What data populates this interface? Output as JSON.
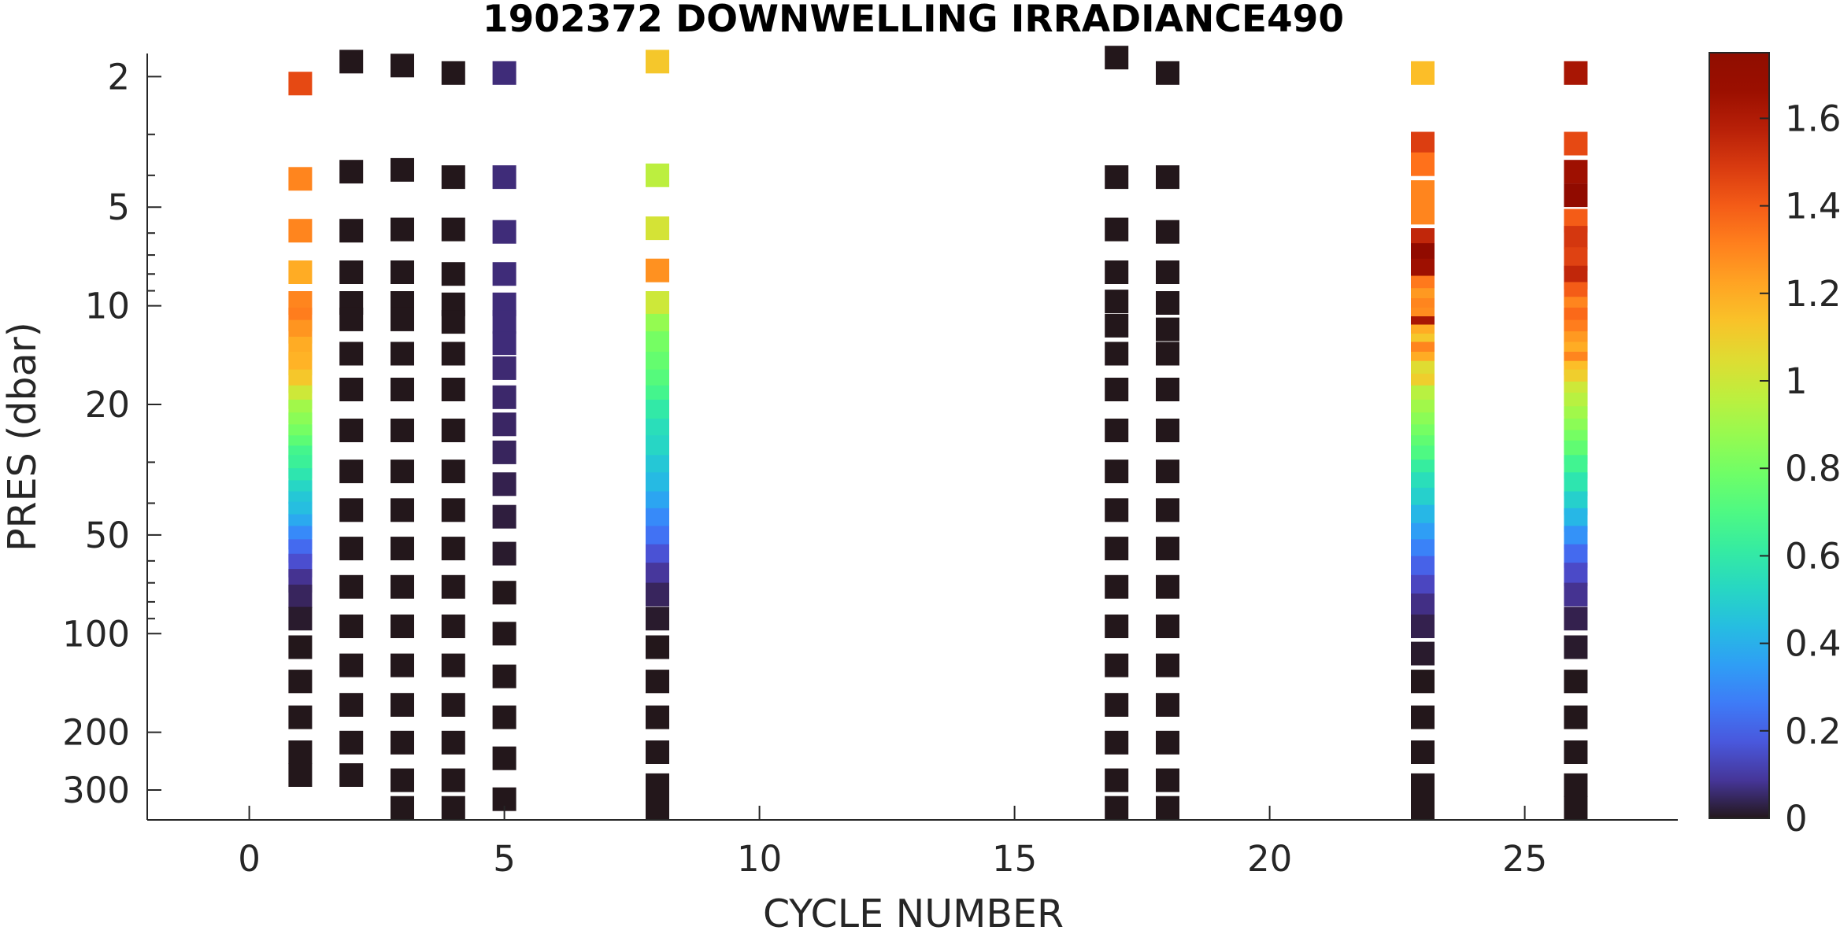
{
  "chart_data": {
    "type": "scatter",
    "title": "1902372  DOWNWELLING IRRADIANCE490",
    "xlabel": "CYCLE NUMBER",
    "ylabel": "PRES (dbar)",
    "xlim": [
      -2,
      28
    ],
    "ylim": [
      1.7,
      370
    ],
    "y_scale": "log",
    "y_reversed": true,
    "x_ticks": [
      0,
      5,
      10,
      15,
      20,
      25
    ],
    "x_tick_labels": [
      "0",
      "5",
      "10",
      "15",
      "20",
      "25"
    ],
    "y_ticks": [
      2,
      5,
      10,
      20,
      50,
      100,
      200,
      300
    ],
    "y_tick_labels": [
      "2",
      "5",
      "10",
      "20",
      "50",
      "100",
      "200",
      "300"
    ],
    "colorbar": {
      "colormap": "turbo",
      "clim": [
        0,
        1.75
      ],
      "ticks": [
        0,
        0.2,
        0.4,
        0.6,
        0.8,
        1,
        1.2,
        1.4,
        1.6
      ],
      "tick_labels": [
        "0",
        "0.2",
        "0.4",
        "0.6",
        "0.8",
        "1",
        "1.2",
        "1.4",
        "1.6"
      ]
    },
    "grid": false,
    "profiles": [
      {
        "cycle": 1,
        "points": [
          [
            2.1,
            1.45
          ],
          [
            4.1,
            1.3
          ],
          [
            5.9,
            1.3
          ],
          [
            7.9,
            1.2
          ],
          [
            9.8,
            1.3
          ],
          [
            11,
            1.32
          ],
          [
            12,
            1.26
          ],
          [
            13.5,
            1.2
          ],
          [
            15,
            1.18
          ],
          [
            17,
            1.12
          ],
          [
            19,
            1.0
          ],
          [
            21,
            0.9
          ],
          [
            23,
            0.85
          ],
          [
            25,
            0.8
          ],
          [
            27,
            0.74
          ],
          [
            29,
            0.67
          ],
          [
            31,
            0.64
          ],
          [
            34,
            0.58
          ],
          [
            37,
            0.52
          ],
          [
            40,
            0.47
          ],
          [
            43,
            0.44
          ],
          [
            47,
            0.38
          ],
          [
            51,
            0.3
          ],
          [
            56,
            0.22
          ],
          [
            62,
            0.15
          ],
          [
            69,
            0.08
          ],
          [
            77,
            0.04
          ],
          [
            90,
            0.01
          ],
          [
            110,
            0.0
          ],
          [
            140,
            0.0
          ],
          [
            180,
            0.0
          ],
          [
            230,
            0.0
          ],
          [
            270,
            0.0
          ]
        ]
      },
      {
        "cycle": 2,
        "points": [
          [
            1.8,
            0.0
          ],
          [
            3.9,
            0.0
          ],
          [
            5.9,
            0.0
          ],
          [
            7.9,
            0.0
          ],
          [
            9.8,
            0.0
          ],
          [
            11,
            0.0
          ],
          [
            14,
            0.0
          ],
          [
            18,
            0.0
          ],
          [
            24,
            0.0
          ],
          [
            32,
            0.0
          ],
          [
            42,
            0.0
          ],
          [
            55,
            0.0
          ],
          [
            72,
            0.0
          ],
          [
            95,
            0.0
          ],
          [
            125,
            0.0
          ],
          [
            165,
            0.0
          ],
          [
            215,
            0.0
          ],
          [
            270,
            0.0
          ]
        ]
      },
      {
        "cycle": 3,
        "points": [
          [
            1.85,
            0.0
          ],
          [
            3.85,
            0.0
          ],
          [
            5.85,
            0.0
          ],
          [
            7.9,
            0.0
          ],
          [
            9.8,
            0.0
          ],
          [
            11,
            0.0
          ],
          [
            14,
            0.0
          ],
          [
            18,
            0.0
          ],
          [
            24,
            0.0
          ],
          [
            32,
            0.0
          ],
          [
            42,
            0.0
          ],
          [
            55,
            0.0
          ],
          [
            72,
            0.0
          ],
          [
            95,
            0.0
          ],
          [
            125,
            0.0
          ],
          [
            165,
            0.0
          ],
          [
            215,
            0.0
          ],
          [
            280,
            0.0
          ],
          [
            340,
            0.0
          ]
        ]
      },
      {
        "cycle": 4,
        "points": [
          [
            1.95,
            0.0
          ],
          [
            4.05,
            0.0
          ],
          [
            5.85,
            0.0
          ],
          [
            8.0,
            0.0
          ],
          [
            9.9,
            0.0
          ],
          [
            11.2,
            0.0
          ],
          [
            14,
            0.0
          ],
          [
            18,
            0.0
          ],
          [
            24,
            0.0
          ],
          [
            32,
            0.0
          ],
          [
            42,
            0.0
          ],
          [
            55,
            0.0
          ],
          [
            72,
            0.0
          ],
          [
            95,
            0.0
          ],
          [
            125,
            0.0
          ],
          [
            165,
            0.0
          ],
          [
            215,
            0.0
          ],
          [
            280,
            0.0
          ],
          [
            340,
            0.0
          ]
        ]
      },
      {
        "cycle": 5,
        "points": [
          [
            1.95,
            0.06
          ],
          [
            4.05,
            0.06
          ],
          [
            5.95,
            0.06
          ],
          [
            8.0,
            0.06
          ],
          [
            9.9,
            0.06
          ],
          [
            11.2,
            0.06
          ],
          [
            13,
            0.06
          ],
          [
            15.5,
            0.055
          ],
          [
            19,
            0.05
          ],
          [
            23,
            0.045
          ],
          [
            28,
            0.04
          ],
          [
            35,
            0.03
          ],
          [
            44,
            0.02
          ],
          [
            57,
            0.01
          ],
          [
            75,
            0.0
          ],
          [
            100,
            0.0
          ],
          [
            135,
            0.0
          ],
          [
            180,
            0.0
          ],
          [
            240,
            0.0
          ],
          [
            320,
            0.0
          ]
        ]
      },
      {
        "cycle": 8,
        "points": [
          [
            1.8,
            1.12
          ],
          [
            4.0,
            0.96
          ],
          [
            5.8,
            1.02
          ],
          [
            7.8,
            1.27
          ],
          [
            9.8,
            1.0
          ],
          [
            11.5,
            0.87
          ],
          [
            13,
            0.8
          ],
          [
            15,
            0.76
          ],
          [
            17,
            0.72
          ],
          [
            19,
            0.67
          ],
          [
            21,
            0.6
          ],
          [
            24,
            0.55
          ],
          [
            27,
            0.52
          ],
          [
            31,
            0.47
          ],
          [
            35,
            0.43
          ],
          [
            40,
            0.37
          ],
          [
            45,
            0.3
          ],
          [
            51,
            0.24
          ],
          [
            58,
            0.16
          ],
          [
            66,
            0.09
          ],
          [
            76,
            0.04
          ],
          [
            90,
            0.01
          ],
          [
            110,
            0.0
          ],
          [
            140,
            0.0
          ],
          [
            180,
            0.0
          ],
          [
            230,
            0.0
          ],
          [
            290,
            0.0
          ],
          [
            340,
            0.0
          ]
        ]
      },
      {
        "cycle": 17,
        "points": [
          [
            1.75,
            0.0
          ],
          [
            4.05,
            0.0
          ],
          [
            5.85,
            0.0
          ],
          [
            7.9,
            0.0
          ],
          [
            9.7,
            0.0
          ],
          [
            11.5,
            0.0
          ],
          [
            14,
            0.0
          ],
          [
            18,
            0.0
          ],
          [
            24,
            0.0
          ],
          [
            32,
            0.0
          ],
          [
            42,
            0.0
          ],
          [
            55,
            0.0
          ],
          [
            72,
            0.0
          ],
          [
            95,
            0.0
          ],
          [
            125,
            0.0
          ],
          [
            165,
            0.0
          ],
          [
            215,
            0.0
          ],
          [
            280,
            0.0
          ],
          [
            340,
            0.0
          ]
        ]
      },
      {
        "cycle": 18,
        "points": [
          [
            1.95,
            0.0
          ],
          [
            4.05,
            0.0
          ],
          [
            5.95,
            0.0
          ],
          [
            7.9,
            0.0
          ],
          [
            9.8,
            0.0
          ],
          [
            11.8,
            0.0
          ],
          [
            14,
            0.0
          ],
          [
            18,
            0.0
          ],
          [
            24,
            0.0
          ],
          [
            32,
            0.0
          ],
          [
            42,
            0.0
          ],
          [
            55,
            0.0
          ],
          [
            72,
            0.0
          ],
          [
            95,
            0.0
          ],
          [
            125,
            0.0
          ],
          [
            165,
            0.0
          ],
          [
            215,
            0.0
          ],
          [
            280,
            0.0
          ],
          [
            340,
            0.0
          ]
        ]
      },
      {
        "cycle": 23,
        "points": [
          [
            1.95,
            1.15
          ],
          [
            3.2,
            1.48
          ],
          [
            3.7,
            1.35
          ],
          [
            4.5,
            1.3
          ],
          [
            5.2,
            1.3
          ],
          [
            6.3,
            1.55
          ],
          [
            7.0,
            1.72
          ],
          [
            7.8,
            1.65
          ],
          [
            8.8,
            1.33
          ],
          [
            9.6,
            1.25
          ],
          [
            10.3,
            1.3
          ],
          [
            11,
            1.28
          ],
          [
            11.7,
            1.62
          ],
          [
            12.4,
            1.2
          ],
          [
            13.2,
            1.12
          ],
          [
            14,
            1.3
          ],
          [
            15,
            1.2
          ],
          [
            16,
            1.05
          ],
          [
            17.5,
            1.1
          ],
          [
            19,
            0.95
          ],
          [
            21,
            0.9
          ],
          [
            23,
            0.85
          ],
          [
            25,
            0.8
          ],
          [
            27,
            0.75
          ],
          [
            29,
            0.7
          ],
          [
            32,
            0.62
          ],
          [
            35,
            0.55
          ],
          [
            39,
            0.5
          ],
          [
            44,
            0.42
          ],
          [
            50,
            0.35
          ],
          [
            56,
            0.28
          ],
          [
            63,
            0.2
          ],
          [
            72,
            0.13
          ],
          [
            82,
            0.07
          ],
          [
            95,
            0.03
          ],
          [
            115,
            0.01
          ],
          [
            140,
            0.0
          ],
          [
            180,
            0.0
          ],
          [
            230,
            0.0
          ],
          [
            290,
            0.0
          ],
          [
            340,
            0.0
          ]
        ]
      },
      {
        "cycle": 26,
        "points": [
          [
            1.95,
            1.62
          ],
          [
            3.2,
            1.45
          ],
          [
            3.9,
            1.65
          ],
          [
            4.6,
            1.72
          ],
          [
            5.5,
            1.4
          ],
          [
            6.2,
            1.5
          ],
          [
            7.2,
            1.47
          ],
          [
            8.2,
            1.55
          ],
          [
            9.2,
            1.4
          ],
          [
            10.2,
            1.3
          ],
          [
            11,
            1.37
          ],
          [
            12,
            1.32
          ],
          [
            13,
            1.25
          ],
          [
            14,
            1.2
          ],
          [
            15,
            1.3
          ],
          [
            16,
            1.15
          ],
          [
            17,
            1.1
          ],
          [
            18.5,
            1.0
          ],
          [
            20,
            0.95
          ],
          [
            22,
            0.9
          ],
          [
            24,
            0.85
          ],
          [
            26,
            0.8
          ],
          [
            28,
            0.75
          ],
          [
            31,
            0.66
          ],
          [
            35,
            0.58
          ],
          [
            40,
            0.5
          ],
          [
            45,
            0.42
          ],
          [
            51,
            0.32
          ],
          [
            58,
            0.22
          ],
          [
            66,
            0.14
          ],
          [
            76,
            0.08
          ],
          [
            90,
            0.03
          ],
          [
            110,
            0.01
          ],
          [
            140,
            0.0
          ],
          [
            180,
            0.0
          ],
          [
            230,
            0.0
          ],
          [
            290,
            0.0
          ],
          [
            340,
            0.0
          ]
        ]
      }
    ]
  }
}
